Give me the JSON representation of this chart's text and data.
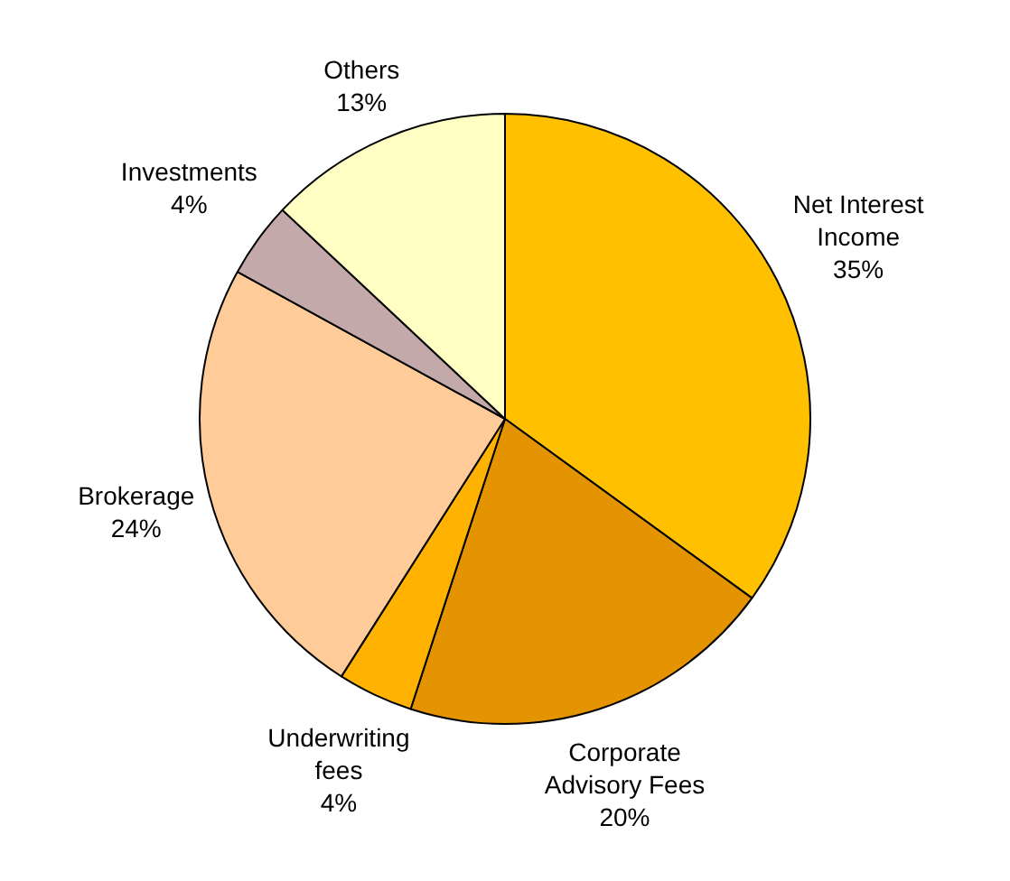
{
  "chart_data": {
    "type": "pie",
    "categories": [
      "Net Interest Income",
      "Corporate Advisory Fees",
      "Underwriting fees",
      "Brokerage",
      "Investments",
      "Others"
    ],
    "values": [
      35,
      20,
      4,
      24,
      4,
      13
    ],
    "colors": [
      "#ffc000",
      "#e39400",
      "#ffb300",
      "#ffcc99",
      "#c4a9aa",
      "#ffffc4"
    ],
    "value_labels": [
      "35%",
      "20%",
      "4%",
      "24%",
      "4%",
      "13%"
    ],
    "legend": false
  }
}
